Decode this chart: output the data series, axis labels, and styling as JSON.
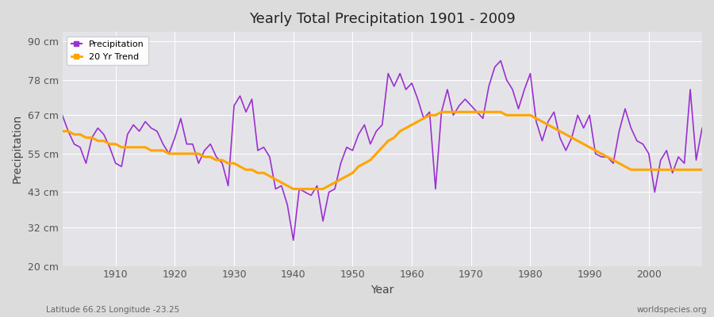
{
  "title": "Yearly Total Precipitation 1901 - 2009",
  "xlabel": "Year",
  "ylabel": "Precipitation",
  "subtitle_left": "Latitude 66.25 Longitude -23.25",
  "subtitle_right": "worldspecies.org",
  "ylim": [
    20,
    93
  ],
  "yticks": [
    20,
    32,
    43,
    55,
    67,
    78,
    90
  ],
  "ytick_labels": [
    "20 cm",
    "32 cm",
    "43 cm",
    "55 cm",
    "67 cm",
    "78 cm",
    "90 cm"
  ],
  "xlim": [
    1901,
    2009
  ],
  "xticks": [
    1910,
    1920,
    1930,
    1940,
    1950,
    1960,
    1970,
    1980,
    1990,
    2000
  ],
  "precip_color": "#9B30D0",
  "trend_color": "#FFA500",
  "bg_color": "#DCDCDC",
  "plot_bg_color": "#E4E4E8",
  "grid_color": "#FFFFFF",
  "years": [
    1901,
    1902,
    1903,
    1904,
    1905,
    1906,
    1907,
    1908,
    1909,
    1910,
    1911,
    1912,
    1913,
    1914,
    1915,
    1916,
    1917,
    1918,
    1919,
    1920,
    1921,
    1922,
    1923,
    1924,
    1925,
    1926,
    1927,
    1928,
    1929,
    1930,
    1931,
    1932,
    1933,
    1934,
    1935,
    1936,
    1937,
    1938,
    1939,
    1940,
    1941,
    1942,
    1943,
    1944,
    1945,
    1946,
    1947,
    1948,
    1949,
    1950,
    1951,
    1952,
    1953,
    1954,
    1955,
    1956,
    1957,
    1958,
    1959,
    1960,
    1961,
    1962,
    1963,
    1964,
    1965,
    1966,
    1967,
    1968,
    1969,
    1970,
    1971,
    1972,
    1973,
    1974,
    1975,
    1976,
    1977,
    1978,
    1979,
    1980,
    1981,
    1982,
    1983,
    1984,
    1985,
    1986,
    1987,
    1988,
    1989,
    1990,
    1991,
    1992,
    1993,
    1994,
    1995,
    1996,
    1997,
    1998,
    1999,
    2000,
    2001,
    2002,
    2003,
    2004,
    2005,
    2006,
    2007,
    2008,
    2009
  ],
  "precip": [
    67,
    62,
    58,
    57,
    52,
    60,
    63,
    61,
    57,
    52,
    51,
    61,
    64,
    62,
    65,
    63,
    62,
    58,
    55,
    60,
    66,
    58,
    58,
    52,
    56,
    58,
    54,
    52,
    45,
    70,
    73,
    68,
    72,
    56,
    57,
    54,
    44,
    45,
    39,
    28,
    44,
    43,
    42,
    45,
    34,
    43,
    44,
    52,
    57,
    56,
    61,
    64,
    58,
    62,
    64,
    80,
    76,
    80,
    75,
    77,
    72,
    66,
    68,
    44,
    68,
    75,
    67,
    70,
    72,
    70,
    68,
    66,
    76,
    82,
    84,
    78,
    75,
    69,
    75,
    80,
    65,
    59,
    65,
    68,
    60,
    56,
    60,
    67,
    63,
    67,
    55,
    54,
    54,
    52,
    62,
    69,
    63,
    59,
    58,
    55,
    43,
    53,
    56,
    49,
    54,
    52,
    75,
    53,
    63
  ],
  "trend": [
    62,
    62,
    61,
    61,
    60,
    60,
    59,
    59,
    58,
    58,
    57,
    57,
    57,
    57,
    57,
    56,
    56,
    56,
    55,
    55,
    55,
    55,
    55,
    55,
    54,
    54,
    53,
    53,
    52,
    52,
    51,
    50,
    50,
    49,
    49,
    48,
    47,
    46,
    45,
    44,
    44,
    44,
    44,
    44,
    44,
    45,
    46,
    47,
    48,
    49,
    51,
    52,
    53,
    55,
    57,
    59,
    60,
    62,
    63,
    64,
    65,
    66,
    67,
    67,
    68,
    68,
    68,
    68,
    68,
    68,
    68,
    68,
    68,
    68,
    68,
    67,
    67,
    67,
    67,
    67,
    66,
    65,
    64,
    63,
    62,
    61,
    60,
    59,
    58,
    57,
    56,
    55,
    54,
    53,
    52,
    51,
    50,
    50,
    50,
    50,
    50,
    50,
    50,
    50,
    50,
    50,
    50,
    50,
    50
  ]
}
